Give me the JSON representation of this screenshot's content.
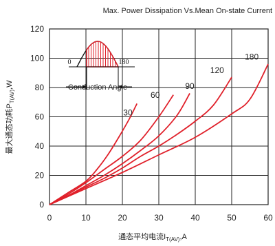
{
  "chart_data": {
    "type": "line",
    "title": "Max. Power Dissipation Vs.Mean On-state Current",
    "xlabel": "通态平均电流I",
    "xlabel_sub": "T(AV)",
    "xlabel_unit": ",A",
    "ylabel": "最大通态功耗P",
    "ylabel_sub": "T(AV)",
    "ylabel_unit": ",W",
    "xlim": [
      0,
      60
    ],
    "ylim": [
      0,
      120
    ],
    "xticks": [
      0,
      10,
      20,
      30,
      40,
      50,
      60
    ],
    "yticks": [
      0,
      20,
      40,
      60,
      80,
      100,
      120
    ],
    "grid": true,
    "line_color": "#e0202a",
    "series": [
      {
        "name": "30",
        "label_at": [
          21.5,
          61
        ],
        "x": [
          0,
          5,
          10,
          13,
          16,
          19,
          22,
          24
        ],
        "y": [
          0,
          8,
          16,
          24,
          34,
          46,
          59,
          69
        ]
      },
      {
        "name": "60",
        "label_at": [
          29,
          73
        ],
        "x": [
          0,
          5,
          10,
          15,
          20,
          25,
          30,
          34
        ],
        "y": [
          0,
          7,
          15,
          24,
          33,
          44,
          60,
          75
        ]
      },
      {
        "name": "90",
        "label_at": [
          38.5,
          79
        ],
        "x": [
          0,
          5,
          10,
          15,
          20,
          25,
          30,
          35,
          38.5
        ],
        "y": [
          0,
          6,
          13,
          20,
          28,
          37,
          47,
          61,
          76
        ]
      },
      {
        "name": "120",
        "label_at": [
          46,
          90
        ],
        "x": [
          0,
          5,
          10,
          15,
          20,
          25,
          30,
          35,
          40,
          45,
          50
        ],
        "y": [
          0,
          6,
          12,
          18,
          25,
          33,
          40,
          48,
          57,
          68,
          87
        ]
      },
      {
        "name": "180",
        "label_at": [
          55.5,
          99
        ],
        "x": [
          0,
          10,
          20,
          30,
          40,
          50,
          55,
          60
        ],
        "y": [
          0,
          11,
          22,
          34,
          46,
          62,
          72,
          96
        ]
      }
    ],
    "inset": {
      "left_label": "0",
      "right_label": "180",
      "caption": "Conduction Angle"
    }
  }
}
